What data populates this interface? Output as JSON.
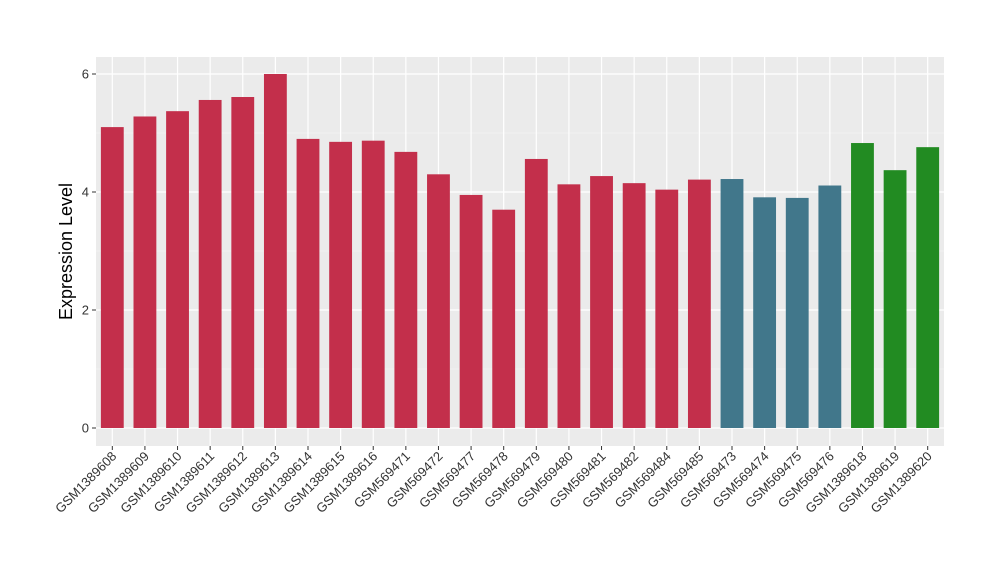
{
  "chart_data": {
    "type": "bar",
    "title": "",
    "xlabel": "",
    "ylabel": "Expression Level",
    "ylim": [
      0,
      6.25
    ],
    "yticks": [
      0,
      2,
      4,
      6
    ],
    "grid": true,
    "background": "#ebebeb",
    "categories": [
      "GSM1389608",
      "GSM1389609",
      "GSM1389610",
      "GSM1389611",
      "GSM1389612",
      "GSM1389613",
      "GSM1389614",
      "GSM1389615",
      "GSM1389616",
      "GSM569471",
      "GSM569472",
      "GSM569477",
      "GSM569478",
      "GSM569479",
      "GSM569480",
      "GSM569481",
      "GSM569482",
      "GSM569484",
      "GSM569485",
      "GSM569473",
      "GSM569474",
      "GSM569475",
      "GSM569476",
      "GSM1389618",
      "GSM1389619",
      "GSM1389620"
    ],
    "values": [
      5.1,
      5.28,
      5.37,
      5.56,
      5.61,
      6.0,
      4.9,
      4.85,
      4.87,
      4.68,
      4.3,
      3.95,
      3.7,
      4.56,
      4.13,
      4.27,
      4.15,
      4.04,
      4.21,
      4.22,
      3.91,
      3.9,
      4.11,
      4.83,
      4.37,
      4.76
    ],
    "groups": [
      0,
      0,
      0,
      0,
      0,
      0,
      0,
      0,
      0,
      0,
      0,
      0,
      0,
      0,
      0,
      0,
      0,
      0,
      0,
      1,
      1,
      1,
      1,
      2,
      2,
      2
    ],
    "group_colors": [
      "#c32f4b",
      "#41778b",
      "#228b22"
    ]
  }
}
